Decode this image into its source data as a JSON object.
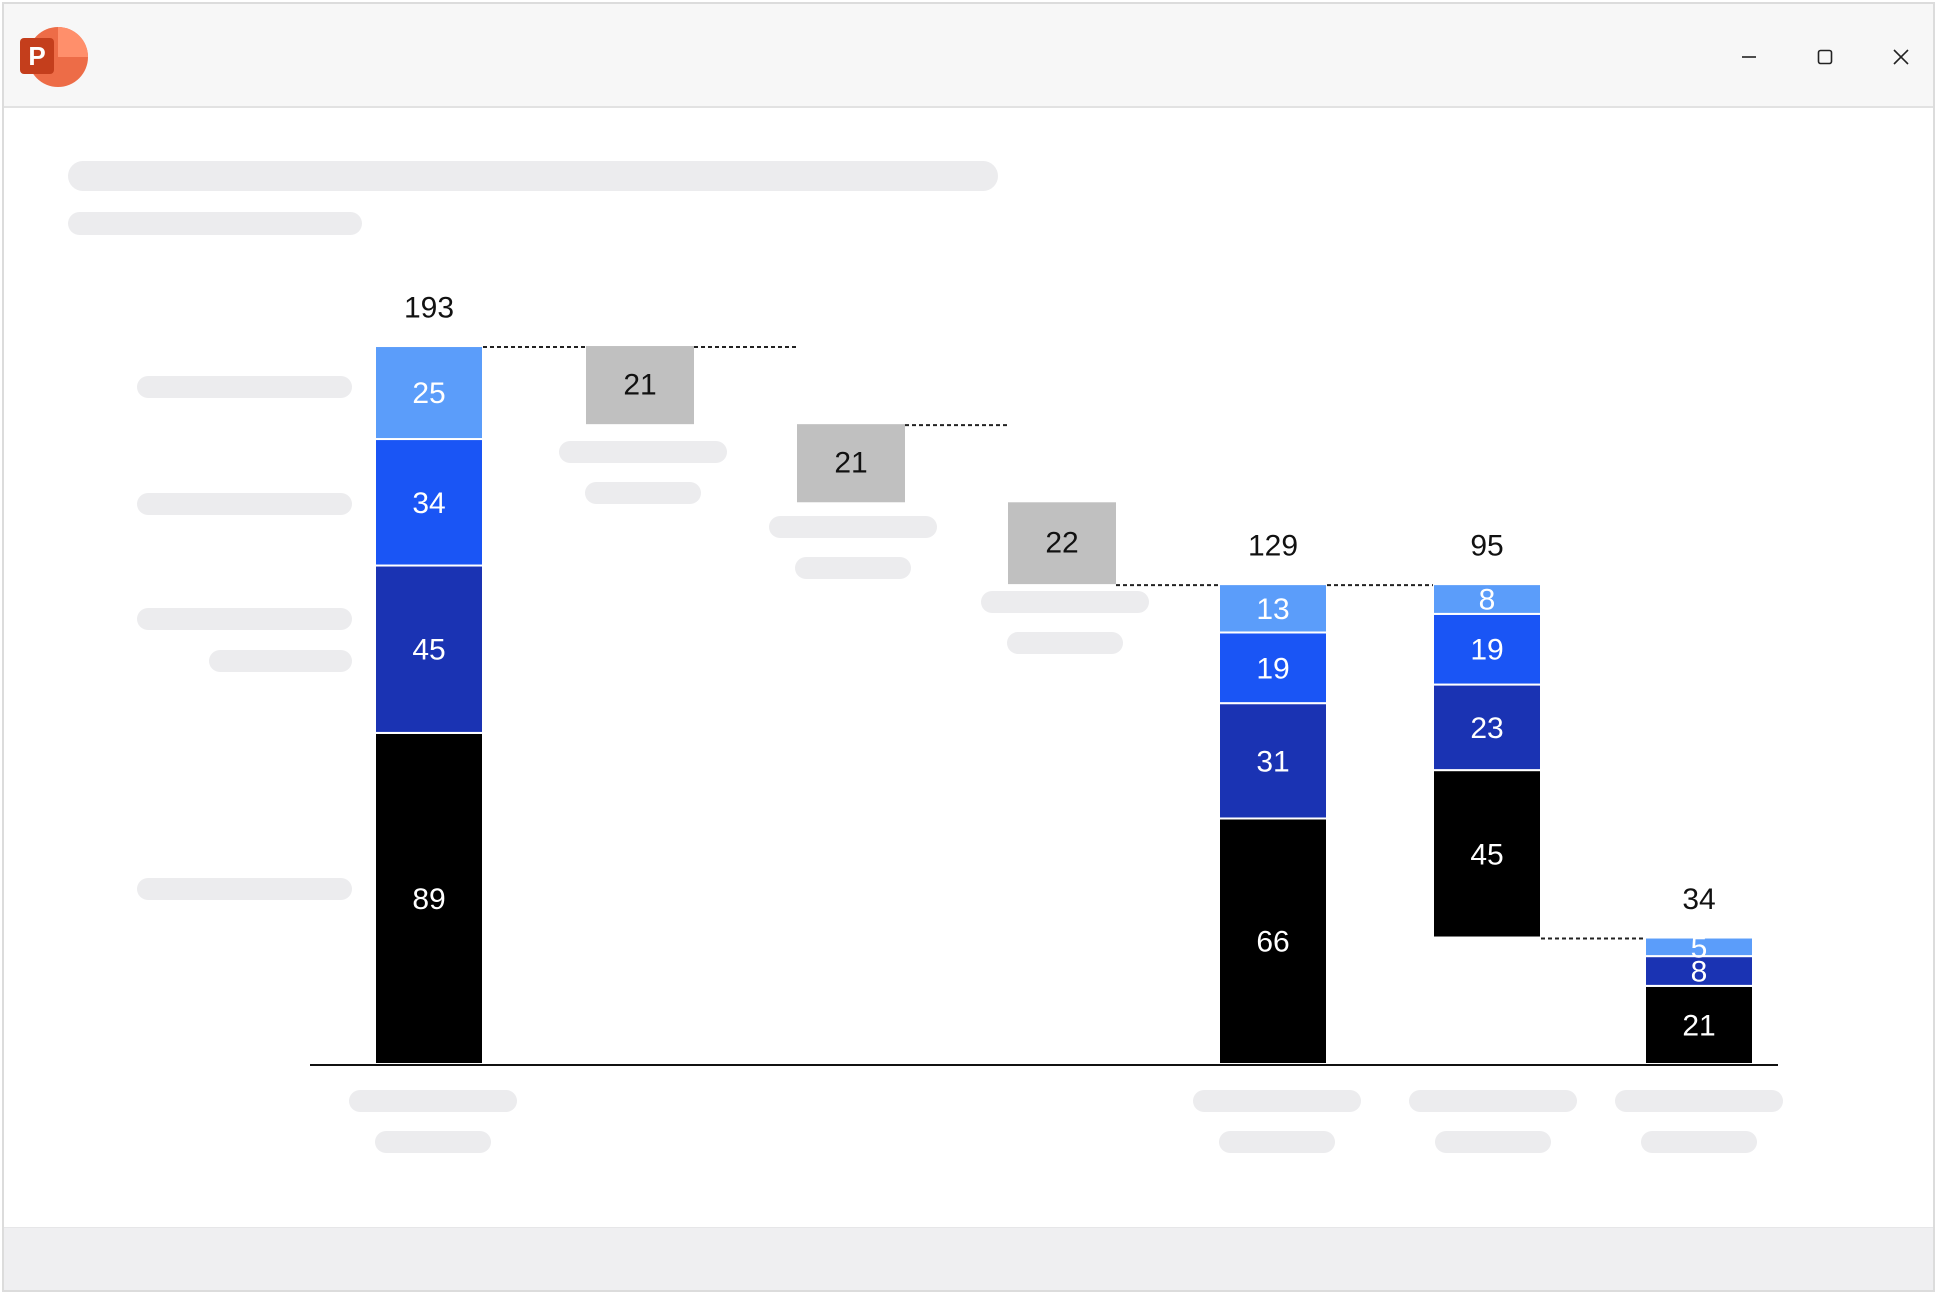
{
  "app": {
    "icon": "powerpoint-icon",
    "icon_letter": "P",
    "colors": {
      "icon_dark": "#c43e1c",
      "icon_mid": "#ed6c47",
      "icon_light": "#ff8f6b"
    }
  },
  "window_controls": [
    {
      "name": "minimize-button",
      "icon": "minimize-icon"
    },
    {
      "name": "maximize-button",
      "icon": "maximize-icon"
    },
    {
      "name": "close-button",
      "icon": "close-icon"
    }
  ],
  "chart_data": {
    "type": "bar",
    "subtype": "stacked-waterfall",
    "title": "",
    "xlabel": "",
    "ylabel": "",
    "ylim": [
      0,
      193
    ],
    "grid": false,
    "legend": "none",
    "series_colors": {
      "segment_1": "#000000",
      "segment_2": "#1a33b3",
      "segment_3": "#1a55f5",
      "segment_4": "#5b9dfa",
      "change": "#c0c0c0"
    },
    "columns": [
      {
        "kind": "stack",
        "base": 0,
        "segments": [
          89,
          45,
          34,
          25
        ],
        "colors": [
          "segment_1",
          "segment_2",
          "segment_3",
          "segment_4"
        ],
        "total": 193
      },
      {
        "kind": "change",
        "top": 193,
        "value": 21
      },
      {
        "kind": "change",
        "top": 172,
        "value": 21
      },
      {
        "kind": "change",
        "top": 151,
        "value": 22
      },
      {
        "kind": "stack",
        "base": 0,
        "segments": [
          66,
          31,
          19,
          13
        ],
        "colors": [
          "segment_1",
          "segment_2",
          "segment_3",
          "segment_4"
        ],
        "total": 129
      },
      {
        "kind": "stack",
        "base": 34,
        "segments": [
          45,
          23,
          19,
          8
        ],
        "colors": [
          "segment_1",
          "segment_2",
          "segment_3",
          "segment_4"
        ],
        "total": 95
      },
      {
        "kind": "stack",
        "base": 0,
        "segments": [
          21,
          8,
          5
        ],
        "colors": [
          "segment_1",
          "segment_2",
          "segment_4"
        ],
        "total": 34
      }
    ]
  }
}
